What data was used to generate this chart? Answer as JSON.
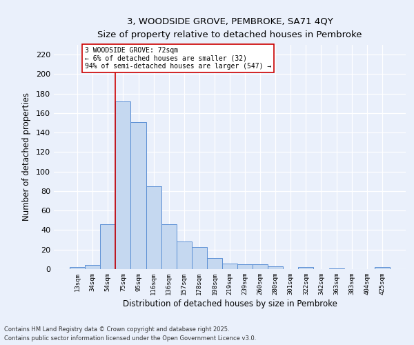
{
  "title_line1": "3, WOODSIDE GROVE, PEMBROKE, SA71 4QY",
  "title_line2": "Size of property relative to detached houses in Pembroke",
  "xlabel": "Distribution of detached houses by size in Pembroke",
  "ylabel": "Number of detached properties",
  "categories": [
    "13sqm",
    "34sqm",
    "54sqm",
    "75sqm",
    "95sqm",
    "116sqm",
    "136sqm",
    "157sqm",
    "178sqm",
    "198sqm",
    "219sqm",
    "239sqm",
    "260sqm",
    "280sqm",
    "301sqm",
    "322sqm",
    "342sqm",
    "363sqm",
    "383sqm",
    "404sqm",
    "425sqm"
  ],
  "values": [
    2,
    4,
    46,
    172,
    151,
    85,
    46,
    28,
    23,
    11,
    6,
    5,
    5,
    3,
    0,
    2,
    0,
    1,
    0,
    0,
    2
  ],
  "bar_color": "#c5d8f0",
  "bar_edge_color": "#5b8fd4",
  "vline_color": "#cc0000",
  "annotation_text": "3 WOODSIDE GROVE: 72sqm\n← 6% of detached houses are smaller (32)\n94% of semi-detached houses are larger (547) →",
  "annotation_box_color": "#ffffff",
  "annotation_box_edge": "#cc0000",
  "bg_color": "#eaf0fb",
  "grid_color": "#ffffff",
  "ylim": [
    0,
    230
  ],
  "yticks": [
    0,
    20,
    40,
    60,
    80,
    100,
    120,
    140,
    160,
    180,
    200,
    220
  ],
  "footnote1": "Contains HM Land Registry data © Crown copyright and database right 2025.",
  "footnote2": "Contains public sector information licensed under the Open Government Licence v3.0."
}
